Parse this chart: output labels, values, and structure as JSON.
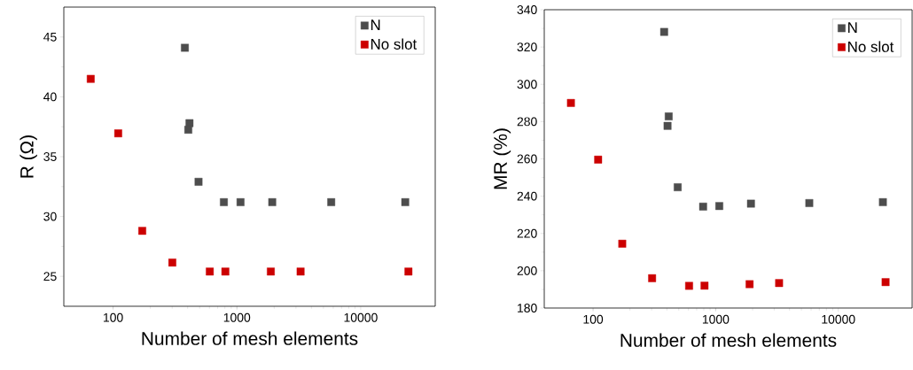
{
  "chart_data": [
    {
      "type": "scatter",
      "xlabel": "Number of mesh elements",
      "ylabel": "R (Ω)",
      "log": "x",
      "marker": "square",
      "legend": "top right",
      "grid": false,
      "xlim": [
        40,
        40000
      ],
      "xticks": [
        100,
        1000,
        10000
      ],
      "ylim": [
        22.5,
        47.5
      ],
      "yticks": [
        25,
        30,
        35,
        40,
        45
      ],
      "series": [
        {
          "name": "N",
          "color": "#4d4d4d",
          "x": [
            380,
            414,
            405,
            490,
            785,
            1070,
            1930,
            5780,
            22900
          ],
          "values": [
            44.1,
            37.8,
            37.25,
            32.9,
            31.2,
            31.2,
            31.2,
            31.2,
            31.2
          ]
        },
        {
          "name": "No slot",
          "color": "#cc0000",
          "x": [
            66,
            110,
            172,
            301,
            604,
            807,
            1880,
            3270,
            24300
          ],
          "values": [
            41.5,
            36.95,
            28.8,
            26.15,
            25.4,
            25.4,
            25.4,
            25.4,
            25.4
          ]
        }
      ]
    },
    {
      "type": "scatter",
      "xlabel": "Number of mesh elements",
      "ylabel": "MR (%)",
      "log": "x",
      "marker": "square",
      "legend": "top right",
      "grid": false,
      "xlim": [
        40,
        40000
      ],
      "xticks": [
        100,
        1000,
        10000
      ],
      "ylim": [
        180,
        340
      ],
      "yticks": [
        180,
        200,
        220,
        240,
        260,
        280,
        300,
        320,
        340
      ],
      "series": [
        {
          "name": "N",
          "color": "#4d4d4d",
          "x": [
            380,
            414,
            405,
            490,
            790,
            1070,
            1940,
            5800,
            23100
          ],
          "values": [
            328.1,
            282.8,
            277.7,
            244.8,
            234.4,
            234.7,
            236,
            236.3,
            236.8
          ]
        },
        {
          "name": "No slot",
          "color": "#cc0000",
          "x": [
            66,
            110,
            173,
            303,
            607,
            811,
            1890,
            3290,
            24300
          ],
          "values": [
            290,
            259.6,
            214.5,
            196,
            191.9,
            192,
            192.8,
            193.4,
            193.9
          ]
        }
      ]
    }
  ]
}
